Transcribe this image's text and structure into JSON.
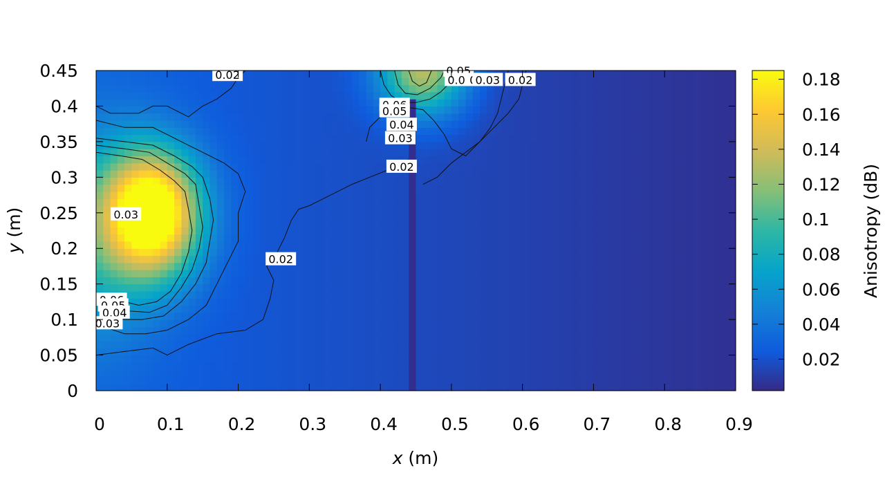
{
  "chart_data": {
    "type": "heatmap",
    "title": "",
    "xlabel": {
      "var": "x",
      "unit": " (m)"
    },
    "ylabel": {
      "var": "y",
      "unit": " (m)"
    },
    "xlim": [
      0,
      0.9
    ],
    "ylim": [
      0,
      0.45
    ],
    "xticks": [
      "0",
      "0.1",
      "0.2",
      "0.3",
      "0.4",
      "0.5",
      "0.6",
      "0.7",
      "0.8",
      "0.9"
    ],
    "yticks": [
      "0",
      "0.05",
      "0.1",
      "0.15",
      "0.2",
      "0.25",
      "0.3",
      "0.35",
      "0.4",
      "0.45"
    ],
    "colorbar": {
      "label": "Anisotropy (dB)",
      "range": [
        0.002,
        0.185
      ],
      "ticks": [
        "0.02",
        "0.04",
        "0.06",
        "0.08",
        "0.1",
        "0.12",
        "0.14",
        "0.16",
        "0.18"
      ],
      "colormap": [
        "#352a87",
        "#0f5cdd",
        "#1481d6",
        "#06a4ca",
        "#2eb7a4",
        "#87bf77",
        "#d1bb59",
        "#fec832",
        "#f9fb0e"
      ]
    },
    "grid": false,
    "field_features": [
      {
        "kind": "hotspot",
        "x": 0.08,
        "y": 0.25,
        "peak": 0.185,
        "sx": 0.065,
        "sy": 0.085
      },
      {
        "kind": "hotspot",
        "x": 0.0,
        "y": 0.22,
        "peak": 0.055,
        "sx": 0.09,
        "sy": 0.14
      },
      {
        "kind": "hotspot",
        "x": 0.46,
        "y": 0.45,
        "peak": 0.115,
        "sx": 0.06,
        "sy": 0.06
      },
      {
        "kind": "background",
        "left": 0.028,
        "right": 0.005
      },
      {
        "kind": "strip",
        "x0": 0.44,
        "x1": 0.45,
        "y0": 0.0,
        "y1": 0.41,
        "value": 0.004
      }
    ],
    "contour_labels": [
      {
        "text": "0.02",
        "x": 0.185,
        "y": 0.444
      },
      {
        "text": "0.05",
        "x": 0.51,
        "y": 0.45
      },
      {
        "text": "0.0",
        "x": 0.507,
        "y": 0.437
      },
      {
        "text": "0.",
        "x": 0.533,
        "y": 0.437
      },
      {
        "text": "0.03",
        "x": 0.551,
        "y": 0.437
      },
      {
        "text": "0.02",
        "x": 0.597,
        "y": 0.437
      },
      {
        "text": "0.06",
        "x": 0.42,
        "y": 0.402
      },
      {
        "text": "0.05",
        "x": 0.42,
        "y": 0.393
      },
      {
        "text": "0.04",
        "x": 0.43,
        "y": 0.374
      },
      {
        "text": "0.03",
        "x": 0.428,
        "y": 0.355
      },
      {
        "text": "0.02",
        "x": 0.43,
        "y": 0.315
      },
      {
        "text": "0.03",
        "x": 0.042,
        "y": 0.248
      },
      {
        "text": "0.02",
        "x": 0.26,
        "y": 0.185
      },
      {
        "text": "0.06",
        "x": 0.022,
        "y": 0.128
      },
      {
        "text": "0.05",
        "x": 0.024,
        "y": 0.12
      },
      {
        "text": "0.04",
        "x": 0.026,
        "y": 0.11
      },
      {
        "text": "0.03",
        "x": 0.016,
        "y": 0.095
      }
    ],
    "contours": [
      {
        "level": 0.02,
        "points": [
          [
            0.0,
            0.4
          ],
          [
            0.02,
            0.39
          ],
          [
            0.06,
            0.39
          ],
          [
            0.08,
            0.4
          ],
          [
            0.1,
            0.4
          ],
          [
            0.13,
            0.385
          ],
          [
            0.15,
            0.4
          ],
          [
            0.17,
            0.41
          ],
          [
            0.19,
            0.425
          ],
          [
            0.2,
            0.44
          ],
          [
            0.21,
            0.45
          ]
        ]
      },
      {
        "level": 0.02,
        "points": [
          [
            0.0,
            0.05
          ],
          [
            0.04,
            0.055
          ],
          [
            0.08,
            0.06
          ],
          [
            0.1,
            0.05
          ],
          [
            0.13,
            0.065
          ],
          [
            0.17,
            0.08
          ],
          [
            0.21,
            0.085
          ],
          [
            0.235,
            0.1
          ],
          [
            0.245,
            0.13
          ],
          [
            0.25,
            0.155
          ],
          [
            0.24,
            0.175
          ],
          [
            0.255,
            0.195
          ],
          [
            0.265,
            0.215
          ],
          [
            0.275,
            0.24
          ],
          [
            0.285,
            0.255
          ],
          [
            0.3,
            0.26
          ],
          [
            0.32,
            0.27
          ],
          [
            0.34,
            0.28
          ],
          [
            0.36,
            0.29
          ],
          [
            0.385,
            0.3
          ],
          [
            0.41,
            0.31
          ],
          [
            0.44,
            0.325
          ]
        ]
      },
      {
        "level": 0.02,
        "points": [
          [
            0.46,
            0.29
          ],
          [
            0.48,
            0.3
          ],
          [
            0.5,
            0.32
          ],
          [
            0.52,
            0.335
          ],
          [
            0.54,
            0.35
          ],
          [
            0.56,
            0.37
          ],
          [
            0.58,
            0.39
          ],
          [
            0.595,
            0.41
          ],
          [
            0.6,
            0.43
          ],
          [
            0.605,
            0.45
          ]
        ]
      },
      {
        "level": 0.03,
        "points": [
          [
            0.0,
            0.38
          ],
          [
            0.04,
            0.37
          ],
          [
            0.08,
            0.37
          ],
          [
            0.12,
            0.35
          ],
          [
            0.15,
            0.335
          ],
          [
            0.18,
            0.32
          ],
          [
            0.2,
            0.305
          ],
          [
            0.21,
            0.28
          ],
          [
            0.2,
            0.25
          ],
          [
            0.2,
            0.21
          ],
          [
            0.185,
            0.18
          ],
          [
            0.17,
            0.15
          ],
          [
            0.155,
            0.12
          ],
          [
            0.13,
            0.1
          ],
          [
            0.1,
            0.085
          ],
          [
            0.07,
            0.08
          ],
          [
            0.04,
            0.08
          ],
          [
            0.01,
            0.09
          ]
        ]
      },
      {
        "level": 0.03,
        "points": [
          [
            0.38,
            0.35
          ],
          [
            0.385,
            0.37
          ],
          [
            0.4,
            0.385
          ],
          [
            0.42,
            0.395
          ],
          [
            0.44,
            0.398
          ],
          [
            0.46,
            0.395
          ],
          [
            0.475,
            0.38
          ],
          [
            0.49,
            0.36
          ],
          [
            0.5,
            0.34
          ],
          [
            0.52,
            0.33
          ],
          [
            0.54,
            0.35
          ],
          [
            0.555,
            0.37
          ],
          [
            0.565,
            0.39
          ],
          [
            0.57,
            0.41
          ],
          [
            0.575,
            0.43
          ],
          [
            0.58,
            0.45
          ]
        ]
      },
      {
        "level": 0.04,
        "points": [
          [
            0.0,
            0.355
          ],
          [
            0.04,
            0.35
          ],
          [
            0.08,
            0.345
          ],
          [
            0.11,
            0.33
          ],
          [
            0.135,
            0.315
          ],
          [
            0.15,
            0.3
          ],
          [
            0.16,
            0.27
          ],
          [
            0.165,
            0.24
          ],
          [
            0.16,
            0.21
          ],
          [
            0.155,
            0.18
          ],
          [
            0.14,
            0.15
          ],
          [
            0.12,
            0.125
          ],
          [
            0.095,
            0.105
          ],
          [
            0.065,
            0.1
          ],
          [
            0.035,
            0.1
          ]
        ]
      },
      {
        "level": 0.04,
        "points": [
          [
            0.4,
            0.45
          ],
          [
            0.405,
            0.43
          ],
          [
            0.415,
            0.415
          ],
          [
            0.43,
            0.405
          ],
          [
            0.45,
            0.405
          ],
          [
            0.47,
            0.41
          ],
          [
            0.485,
            0.42
          ],
          [
            0.5,
            0.435
          ],
          [
            0.51,
            0.45
          ]
        ]
      },
      {
        "level": 0.05,
        "points": [
          [
            0.0,
            0.345
          ],
          [
            0.04,
            0.34
          ],
          [
            0.075,
            0.335
          ],
          [
            0.1,
            0.32
          ],
          [
            0.125,
            0.305
          ],
          [
            0.14,
            0.29
          ],
          [
            0.145,
            0.26
          ],
          [
            0.15,
            0.23
          ],
          [
            0.145,
            0.2
          ],
          [
            0.135,
            0.17
          ],
          [
            0.12,
            0.145
          ],
          [
            0.1,
            0.12
          ],
          [
            0.075,
            0.11
          ],
          [
            0.045,
            0.112
          ]
        ]
      },
      {
        "level": 0.05,
        "points": [
          [
            0.42,
            0.45
          ],
          [
            0.425,
            0.43
          ],
          [
            0.435,
            0.418
          ],
          [
            0.452,
            0.416
          ],
          [
            0.47,
            0.425
          ],
          [
            0.485,
            0.44
          ],
          [
            0.49,
            0.45
          ]
        ]
      },
      {
        "level": 0.06,
        "points": [
          [
            0.0,
            0.335
          ],
          [
            0.035,
            0.33
          ],
          [
            0.065,
            0.325
          ],
          [
            0.09,
            0.31
          ],
          [
            0.11,
            0.295
          ],
          [
            0.125,
            0.28
          ],
          [
            0.13,
            0.255
          ],
          [
            0.135,
            0.225
          ],
          [
            0.13,
            0.195
          ],
          [
            0.12,
            0.165
          ],
          [
            0.105,
            0.14
          ],
          [
            0.085,
            0.125
          ],
          [
            0.06,
            0.12
          ],
          [
            0.04,
            0.125
          ]
        ]
      },
      {
        "level": 0.06,
        "points": [
          [
            0.44,
            0.45
          ],
          [
            0.445,
            0.435
          ],
          [
            0.455,
            0.428
          ],
          [
            0.465,
            0.433
          ],
          [
            0.472,
            0.45
          ]
        ]
      }
    ]
  }
}
